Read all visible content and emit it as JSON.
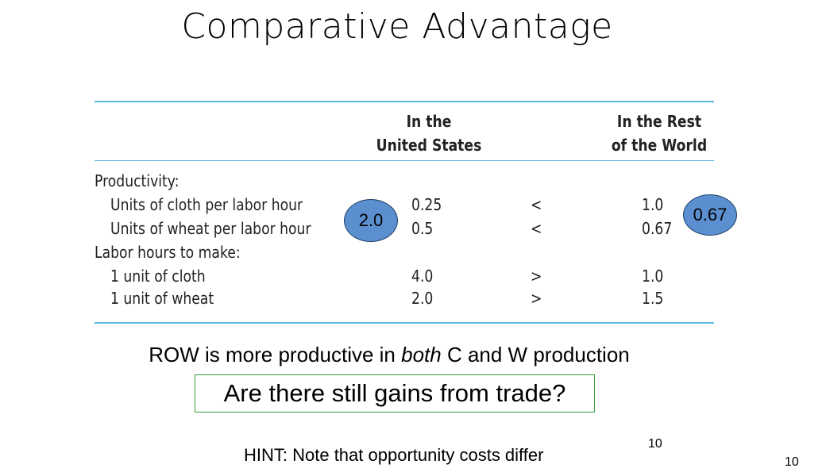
{
  "title": "Comparative Advantage",
  "table": {
    "col_us": [
      "In the",
      "United States"
    ],
    "col_row": [
      "In the Rest",
      "of the World"
    ],
    "sections": [
      {
        "heading": "Productivity:",
        "rows": [
          {
            "label": "Units of cloth per labor hour",
            "us": "0.25",
            "sign": "<",
            "row": "1.0"
          },
          {
            "label": "Units of wheat per labor hour",
            "us": "0.5",
            "sign": "<",
            "row": "0.67"
          }
        ]
      },
      {
        "heading": "Labor hours to make:",
        "rows": [
          {
            "label": "1 unit of cloth",
            "us": "4.0",
            "sign": ">",
            "row": "1.0"
          },
          {
            "label": "1 unit of wheat",
            "us": "2.0",
            "sign": ">",
            "row": "1.5"
          }
        ]
      }
    ]
  },
  "annotations": {
    "us_ratio": "2.0",
    "row_ratio": "0.67"
  },
  "statement": {
    "pre": "ROW is more productive in ",
    "emph": "both",
    "post": " C and W production"
  },
  "question": "Are there still gains from trade?",
  "hint": "HINT: Note that opportunity costs differ",
  "page_number_inner": "10",
  "page_number_outer": "10"
}
